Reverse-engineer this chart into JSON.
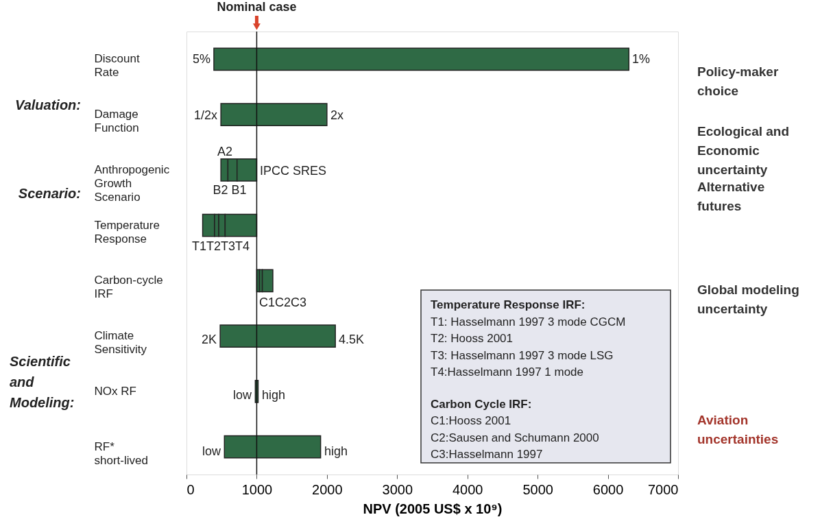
{
  "chart_data": {
    "type": "bar",
    "orientation": "horizontal",
    "xlabel": "NPV (2005 US$ x 10⁹)",
    "categories": [
      "Discount\nRate",
      "Damage\nFunction",
      "Anthropogenic\nGrowth\nScenario",
      "Temperature\nResponse",
      "Carbon-cycle\nIRF",
      "Climate\nSensitivity",
      "NOx RF",
      "RF*\nshort-lived"
    ],
    "series": [
      {
        "color": "#2f6a45",
        "base": [
          390,
          490,
          490,
          230,
          1000,
          480,
          980,
          540
        ],
        "values": [
          5910,
          1510,
          100,
          170,
          40,
          1640,
          40,
          1370
        ]
      },
      {
        "color": "#2f6a45",
        "base": [
          null,
          null,
          590,
          400,
          1040,
          null,
          null,
          null
        ],
        "values": [
          null,
          null,
          130,
          60,
          40,
          null,
          null,
          null
        ]
      },
      {
        "color": "#2f6a45",
        "base": [
          null,
          null,
          720,
          460,
          1080,
          null,
          null,
          null
        ],
        "values": [
          null,
          null,
          280,
          90,
          150,
          null,
          null,
          null
        ]
      },
      {
        "color": "#2f6a45",
        "base": [
          null,
          null,
          null,
          550,
          null,
          null,
          null,
          null
        ],
        "values": [
          null,
          null,
          null,
          450,
          null,
          null,
          null,
          null
        ]
      }
    ],
    "xlim": [
      0,
      7000
    ],
    "xticks": [
      0,
      1000,
      2000,
      3000,
      4000,
      5000,
      6000,
      7000
    ],
    "ref_lines": [
      {
        "axis": "x",
        "value": 1000,
        "label": "Nominal case"
      }
    ],
    "annotations": [
      "Valuation:",
      "Scenario:",
      "Scientific\nand\nModeling:",
      "Policy-maker\nchoice",
      "Ecological and\nEconomic\nuncertainty",
      "Alternative\nfutures",
      "Global modeling\nuncertainty",
      "Aviation\nuncertainties",
      "Temperature Response IRF:",
      "T1: Hasselmann 1997 3 mode CGCM",
      "T2: Hooss 2001",
      "T3: Hasselmann 1997 3 mode LSG",
      "T4:Hasselmann 1997 1 mode",
      "Carbon Cycle IRF:",
      "C1:Hooss 2001",
      "C2:Sausen and Schumann 2000",
      "C3:Hasselmann 1997",
      "5%",
      "1%",
      "1/2x",
      "2x",
      "B2 B1",
      "A2",
      "IPCC SRES",
      "T1T2T3T4",
      "C1C2C3",
      "2K",
      "4.5K",
      "low",
      "high",
      "low",
      "high"
    ]
  }
}
